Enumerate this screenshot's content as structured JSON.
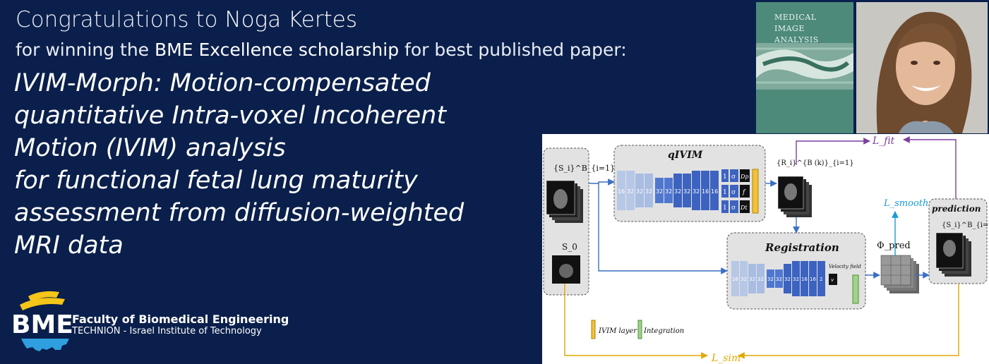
{
  "header": {
    "line1_prefix": "Congratulations to ",
    "line1_name": "Noga Kertes",
    "line2_prefix": "for winning the ",
    "line2_highlight": "BME Excellence scholarship",
    "line2_suffix": " for best published paper:"
  },
  "paper_title": {
    "lines": [
      "IVIM-Morph: Motion-compensated",
      "quantitative Intra-voxel Incoherent",
      "Motion (IVIM) analysis",
      "for functional fetal lung maturity",
      "assessment from diffusion-weighted",
      "MRI data"
    ]
  },
  "logo": {
    "mark": "BME",
    "line1": "Faculty of Biomedical Engineering",
    "line2": "TECHNION - Israel Institute of Technology",
    "colors": {
      "yellow": "#f5c518",
      "blue": "#2f9fe0"
    }
  },
  "journal_cover": {
    "title_lines": [
      "MEDICAL",
      "IMAGE",
      "ANALYSIS"
    ],
    "color": "#4d8a7a"
  },
  "diagram": {
    "input_label": "{S_i}^B_{i=1}",
    "s0_label": "S_0",
    "qivim_title": "qIVIM",
    "qivim_channels": [
      "16",
      "32",
      "32",
      "32",
      "32",
      "32",
      "32",
      "32",
      "32",
      "16",
      "16"
    ],
    "qivim_outputs": [
      "Dp",
      "f",
      "Dt"
    ],
    "qivim_sigma": "σ",
    "qivim_one": "1",
    "r_label": "{R_i}^{B (k)}_{i=1}",
    "loss_fit": "L_fit",
    "loss_smooth": "L_smooth",
    "loss_sim": "L_sim",
    "phi_label": "Φ_pred",
    "prediction_title": "prediction",
    "prediction_label": "{S_i}^B_{i=1}",
    "registration_title": "Registration",
    "registration_channels": [
      "16",
      "32",
      "32",
      "32",
      "32",
      "32",
      "32",
      "32",
      "16",
      "16",
      "2"
    ],
    "velocity_label": "Velocity field",
    "v_label": "v",
    "legend_ivim": "IVIM layer",
    "legend_integration": "Integration",
    "colors": {
      "fit": "#7b3fa0",
      "smooth": "#1a9bd7",
      "sim": "#e0a800",
      "flow": "#3b6fc4"
    }
  }
}
